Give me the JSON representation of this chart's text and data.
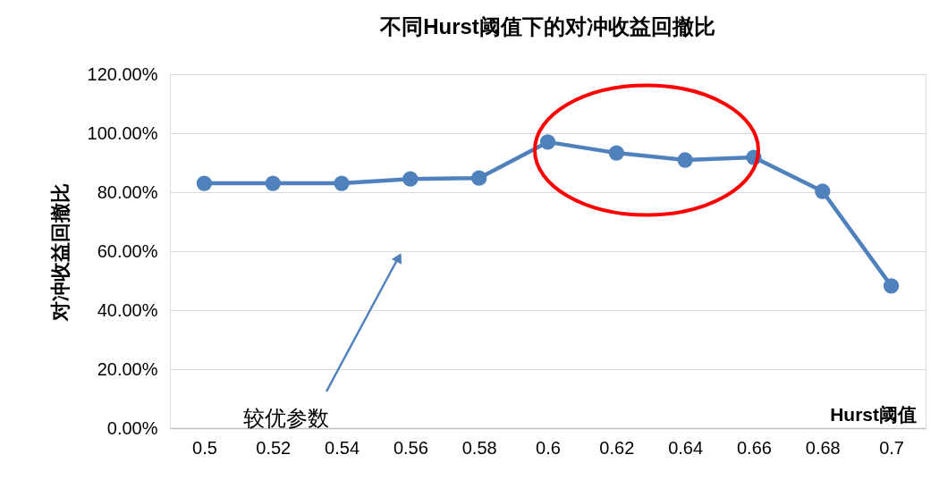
{
  "chart_data": {
    "type": "line",
    "title": "不同Hurst阈值下的对冲收益回撤比",
    "xlabel": "Hurst阈值",
    "ylabel": "对冲收益回撤比",
    "categories": [
      "0.5",
      "0.52",
      "0.54",
      "0.56",
      "0.58",
      "0.6",
      "0.62",
      "0.64",
      "0.66",
      "0.68",
      "0.7"
    ],
    "series": [
      {
        "color": "#4f81bd",
        "values": [
          83.0,
          83.0,
          83.0,
          84.5,
          84.8,
          97.0,
          93.3,
          90.9,
          91.8,
          80.3,
          48.2
        ]
      }
    ],
    "ylim": [
      0,
      120
    ],
    "yticks": [
      {
        "value": 0,
        "label": "0.00%"
      },
      {
        "value": 20,
        "label": "20.00%"
      },
      {
        "value": 40,
        "label": "40.00%"
      },
      {
        "value": 60,
        "label": "60.00%"
      },
      {
        "value": 80,
        "label": "80.00%"
      },
      {
        "value": 100,
        "label": "100.00%"
      },
      {
        "value": 120,
        "label": "120.00%"
      }
    ],
    "annotations": [
      "较优参数"
    ],
    "grid": "y",
    "marker": "circle",
    "line_style": "solid"
  }
}
